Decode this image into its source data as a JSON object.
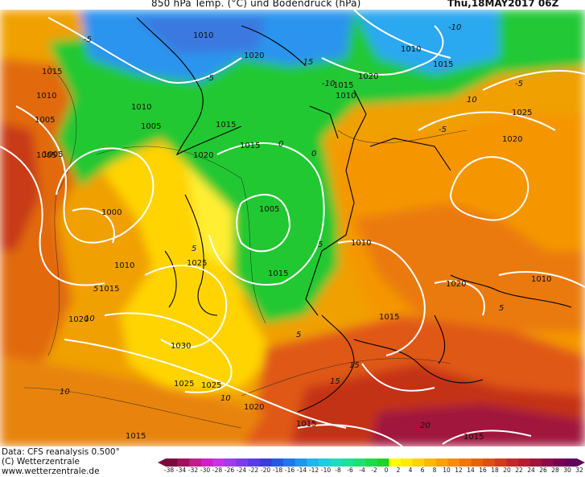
{
  "header": {
    "title": "850 hPa Temp. (°C) und Bodendruck (hPa)",
    "datetime": "Thu,18MAY2017 06Z"
  },
  "footer": {
    "data_source": "Data: CFS reanalysis 0.500°",
    "copyright": "(C) Wetterzentrale",
    "website": "www.wetterzentrale.de"
  },
  "legend": {
    "ticks": [
      "-38",
      "-34",
      "-32",
      "-30",
      "-28",
      "-26",
      "-24",
      "-22",
      "-20",
      "-18",
      "-16",
      "-14",
      "-12",
      "-10",
      "-8",
      "-6",
      "-4",
      "-2",
      "0",
      "2",
      "4",
      "6",
      "8",
      "10",
      "12",
      "14",
      "16",
      "18",
      "20",
      "22",
      "24",
      "26",
      "28",
      "30",
      "32"
    ],
    "colors": [
      "#7a0a3c",
      "#a0125a",
      "#c01a8c",
      "#d21ec8",
      "#c832e6",
      "#a03ce8",
      "#7c3ce8",
      "#5a3ce6",
      "#3c3cd8",
      "#2858e0",
      "#1e78e8",
      "#1e96ec",
      "#1eb4ec",
      "#1ecce0",
      "#1edcc0",
      "#1ee096",
      "#1ee070",
      "#1edc46",
      "#1ed228",
      "#ffff00",
      "#ffec00",
      "#ffd200",
      "#ffb800",
      "#ffa000",
      "#fa8c00",
      "#f07800",
      "#e66400",
      "#dc5014",
      "#d03c1e",
      "#c42828",
      "#b41e32",
      "#a0143c",
      "#8c0a46",
      "#780050",
      "#64005a"
    ]
  },
  "map": {
    "pressure_labels": [
      "1010",
      "1015",
      "1020",
      "1015",
      "1010",
      "1005",
      "1010",
      "1015",
      "1005",
      "1010",
      "1005",
      "1015",
      "1020",
      "1020",
      "1020",
      "1025",
      "1015",
      "1025",
      "1020",
      "1000",
      "1005",
      "1010",
      "1010",
      "1015",
      "1025",
      "1020",
      "1015",
      "1030",
      "1020",
      "1015",
      "1015",
      "1025",
      "1015",
      "1010",
      "1015",
      "1010",
      "1005"
    ],
    "temperature_labels": [
      "-5",
      "-10",
      "-15",
      "-10",
      "-5",
      "-5",
      "0",
      "5",
      "5",
      "5",
      "5",
      "10",
      "10",
      "10",
      "15",
      "15",
      "20",
      "0",
      "5",
      "10",
      "-5"
    ]
  },
  "colors": {
    "cold_blue": "#2ea0f0",
    "green": "#22cc30",
    "yellow": "#ffe600",
    "orange": "#f5a000",
    "dark_orange": "#e86a10",
    "red": "#c83018",
    "isobar": "#ffffff",
    "coastline": "#000000"
  }
}
